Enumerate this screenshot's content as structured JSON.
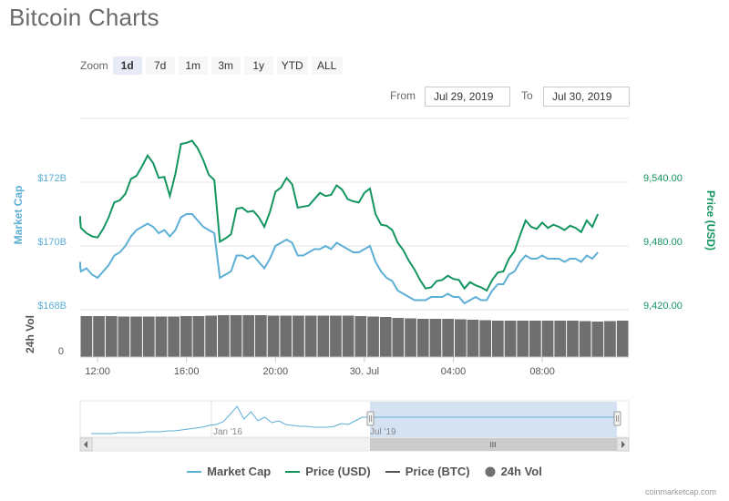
{
  "title": "Bitcoin Charts",
  "zoom": {
    "label": "Zoom",
    "buttons": [
      "1d",
      "7d",
      "1m",
      "3m",
      "1y",
      "YTD",
      "ALL"
    ],
    "selected": "1d"
  },
  "range": {
    "from_label": "From",
    "from_value": "Jul 29, 2019",
    "to_label": "To",
    "to_value": "Jul 30, 2019"
  },
  "legend": {
    "items": [
      "Market Cap",
      "Price (USD)",
      "Price (BTC)",
      "24h Vol"
    ]
  },
  "credit": "coinmarketcap.com",
  "navigator": {
    "labels": [
      "Jan '16",
      "Jul '19"
    ],
    "scrollbar_grip": "III"
  },
  "colors": {
    "market_cap": "#5dafd6",
    "price_usd": "#14955f",
    "price_btc": "#555555",
    "volume": "#6f6f6f",
    "navigator_fill": "#cdddf0"
  },
  "chart_data": {
    "type": "line",
    "title": "Bitcoin Charts",
    "x_ticks": [
      "12:00",
      "16:00",
      "20:00",
      "30. Jul",
      "04:00",
      "08:00"
    ],
    "y_axes": {
      "market_cap": {
        "label": "Market Cap",
        "ticks": [
          "$172B",
          "$170B",
          "$168B"
        ]
      },
      "price_usd": {
        "label": "Price (USD)",
        "ticks": [
          "9,540.00",
          "9,480.00",
          "9,420.00"
        ]
      },
      "volume": {
        "label": "24h Vol",
        "ticks": [
          "0"
        ]
      }
    },
    "x_hours": [
      0,
      0.25,
      0.5,
      0.75,
      1,
      1.25,
      1.5,
      1.75,
      2,
      2.25,
      2.5,
      2.75,
      3,
      3.25,
      3.5,
      3.75,
      4,
      4.25,
      4.5,
      4.75,
      5,
      5.25,
      5.5,
      5.75,
      6,
      6.25,
      6.5,
      6.75,
      7,
      7.25,
      7.5,
      7.75,
      8,
      8.25,
      8.5,
      8.75,
      9,
      9.25,
      9.5,
      9.75,
      10,
      10.25,
      10.5,
      10.75,
      11,
      11.25,
      11.5,
      11.75,
      12,
      12.25,
      12.5,
      12.75,
      13,
      13.25,
      13.5,
      13.75,
      14,
      14.25,
      14.5,
      14.75,
      15,
      15.25,
      15.5,
      15.75,
      16,
      16.25,
      16.5,
      16.75,
      17,
      17.25,
      17.5,
      17.75,
      18,
      18.25,
      18.5,
      18.75,
      19,
      19.25,
      19.5,
      19.75,
      20,
      20.25,
      20.5,
      20.75,
      21,
      21.25,
      21.5,
      21.75,
      22,
      22.25,
      22.5,
      22.75,
      23,
      23.25,
      23.5,
      23.75,
      24
    ],
    "series": [
      {
        "name": "Price (USD)",
        "axis": "price_usd",
        "values": [
          9502,
          9508,
          9505,
          9497,
          9492,
          9489,
          9488,
          9496,
          9507,
          9521,
          9523,
          9529,
          9543,
          9546,
          9555,
          9565,
          9558,
          9544,
          9545,
          9527,
          9548,
          9576,
          9577,
          9579,
          9572,
          9561,
          9547,
          9542,
          9484,
          9487,
          9491,
          9515,
          9516,
          9512,
          9513,
          9507,
          9498,
          9512,
          9531,
          9535,
          9544,
          9538,
          9516,
          9517,
          9518,
          9524,
          9530,
          9527,
          9528,
          9537,
          9533,
          9524,
          9522,
          9521,
          9530,
          9534,
          9510,
          9500,
          9499,
          9495,
          9483,
          9476,
          9466,
          9458,
          9448,
          9440,
          9441,
          9447,
          9448,
          9452,
          9449,
          9448,
          9440,
          9446,
          9443,
          9441,
          9438,
          9448,
          9455,
          9456,
          9468,
          9475,
          9490,
          9504,
          9498,
          9496,
          9502,
          9497,
          9500,
          9498,
          9495,
          9499,
          9497,
          9493,
          9504,
          9498,
          9510
        ]
      },
      {
        "name": "Market Cap",
        "axis": "market_cap",
        "values": [
          169.3,
          169.5,
          169.4,
          169.2,
          169.3,
          169.1,
          169.0,
          169.2,
          169.4,
          169.7,
          169.8,
          170.0,
          170.3,
          170.5,
          170.6,
          170.7,
          170.6,
          170.4,
          170.5,
          170.3,
          170.5,
          170.9,
          171.0,
          171.0,
          170.8,
          170.6,
          170.5,
          170.4,
          169.0,
          169.1,
          169.2,
          169.7,
          169.7,
          169.6,
          169.7,
          169.5,
          169.3,
          169.6,
          170.0,
          170.1,
          170.2,
          170.1,
          169.7,
          169.7,
          169.8,
          169.9,
          169.9,
          170.0,
          169.9,
          170.1,
          170.0,
          169.9,
          169.8,
          169.8,
          169.9,
          170.0,
          169.5,
          169.2,
          169.0,
          168.9,
          168.6,
          168.5,
          168.4,
          168.3,
          168.3,
          168.3,
          168.4,
          168.4,
          168.4,
          168.5,
          168.4,
          168.4,
          168.2,
          168.3,
          168.4,
          168.3,
          168.3,
          168.6,
          168.8,
          168.8,
          169.1,
          169.2,
          169.5,
          169.7,
          169.6,
          169.6,
          169.7,
          169.6,
          169.6,
          169.6,
          169.5,
          169.6,
          169.6,
          169.5,
          169.7,
          169.6,
          169.8
        ]
      },
      {
        "name": "24h Vol",
        "axis": "volume",
        "type": "bar",
        "values": [
          90,
          90,
          90,
          89,
          89,
          89,
          89,
          89,
          90,
          90,
          91,
          92,
          92,
          92,
          92,
          91,
          91,
          91,
          91,
          91,
          91,
          91,
          90,
          89,
          88,
          86,
          85,
          84,
          84,
          84,
          83,
          82,
          81,
          80,
          80,
          80,
          80,
          80,
          80,
          80,
          79,
          78,
          79,
          80
        ]
      }
    ]
  }
}
